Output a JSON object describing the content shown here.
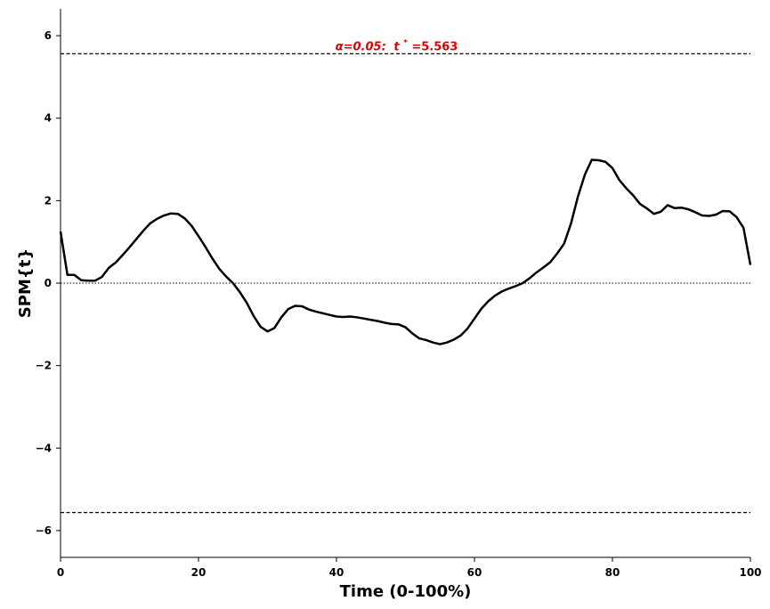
{
  "chart_data": {
    "type": "line",
    "title": "",
    "xlabel": "Time (0-100%)",
    "ylabel": "SPM{t}",
    "xlim": [
      0,
      100
    ],
    "ylim": [
      -6.65,
      6.65
    ],
    "x_ticks": [
      0,
      20,
      40,
      60,
      80,
      100
    ],
    "x_tick_labels": [
      "0",
      "20",
      "40",
      "60",
      "80",
      "100"
    ],
    "y_ticks": [
      -6,
      -4,
      -2,
      0,
      2,
      4,
      6
    ],
    "y_tick_labels": [
      "−6",
      "−4",
      "−2",
      "0",
      "2",
      "4",
      "6"
    ],
    "grid": false,
    "colors": {
      "line": "#000000",
      "threshold": "#000000",
      "annotation": "#e00000"
    },
    "series": [
      {
        "x": [
          0,
          1,
          2,
          3,
          4,
          5,
          6,
          7,
          8,
          9,
          10,
          11,
          12,
          13,
          14,
          15,
          16,
          17,
          18,
          19,
          20,
          21,
          22,
          23,
          24,
          25,
          26,
          27,
          28,
          29,
          30,
          31,
          32,
          33,
          34,
          35,
          36,
          37,
          38,
          39,
          40,
          41,
          42,
          43,
          44,
          45,
          46,
          47,
          48,
          49,
          50,
          51,
          52,
          53,
          54,
          55,
          56,
          57,
          58,
          59,
          60,
          61,
          62,
          63,
          64,
          65,
          66,
          67,
          68,
          69,
          70,
          71,
          72,
          73,
          74,
          75,
          76,
          77,
          78,
          79,
          80,
          81,
          82,
          83,
          84,
          85,
          86,
          87,
          88,
          89,
          90,
          91,
          92,
          93,
          94,
          95,
          96,
          97,
          98,
          99,
          100
        ],
        "y": [
          1.25,
          0.2,
          0.2,
          0.07,
          0.06,
          0.06,
          0.15,
          0.37,
          0.5,
          0.68,
          0.87,
          1.07,
          1.27,
          1.45,
          1.56,
          1.64,
          1.69,
          1.68,
          1.57,
          1.39,
          1.14,
          0.88,
          0.6,
          0.35,
          0.16,
          0.0,
          -0.22,
          -0.48,
          -0.8,
          -1.06,
          -1.17,
          -1.09,
          -0.83,
          -0.63,
          -0.55,
          -0.56,
          -0.64,
          -0.69,
          -0.73,
          -0.77,
          -0.81,
          -0.82,
          -0.81,
          -0.83,
          -0.86,
          -0.89,
          -0.92,
          -0.96,
          -0.99,
          -1.0,
          -1.07,
          -1.22,
          -1.34,
          -1.38,
          -1.44,
          -1.48,
          -1.44,
          -1.37,
          -1.27,
          -1.1,
          -0.86,
          -0.62,
          -0.44,
          -0.3,
          -0.2,
          -0.13,
          -0.07,
          0.0,
          0.12,
          0.26,
          0.38,
          0.51,
          0.72,
          0.96,
          1.45,
          2.1,
          2.63,
          2.99,
          2.98,
          2.94,
          2.79,
          2.5,
          2.3,
          2.13,
          1.92,
          1.81,
          1.68,
          1.73,
          1.89,
          1.82,
          1.83,
          1.79,
          1.72,
          1.64,
          1.63,
          1.66,
          1.75,
          1.74,
          1.6,
          1.34,
          0.44
        ]
      }
    ],
    "thresholds": [
      5.563,
      -5.563
    ],
    "zero_line": 0,
    "annotation": {
      "prefix": "α=0.05:",
      "t_symbol": "t",
      "t_sup": "*",
      "value_text": "=5.563",
      "x": 50,
      "y": 5.563
    }
  }
}
